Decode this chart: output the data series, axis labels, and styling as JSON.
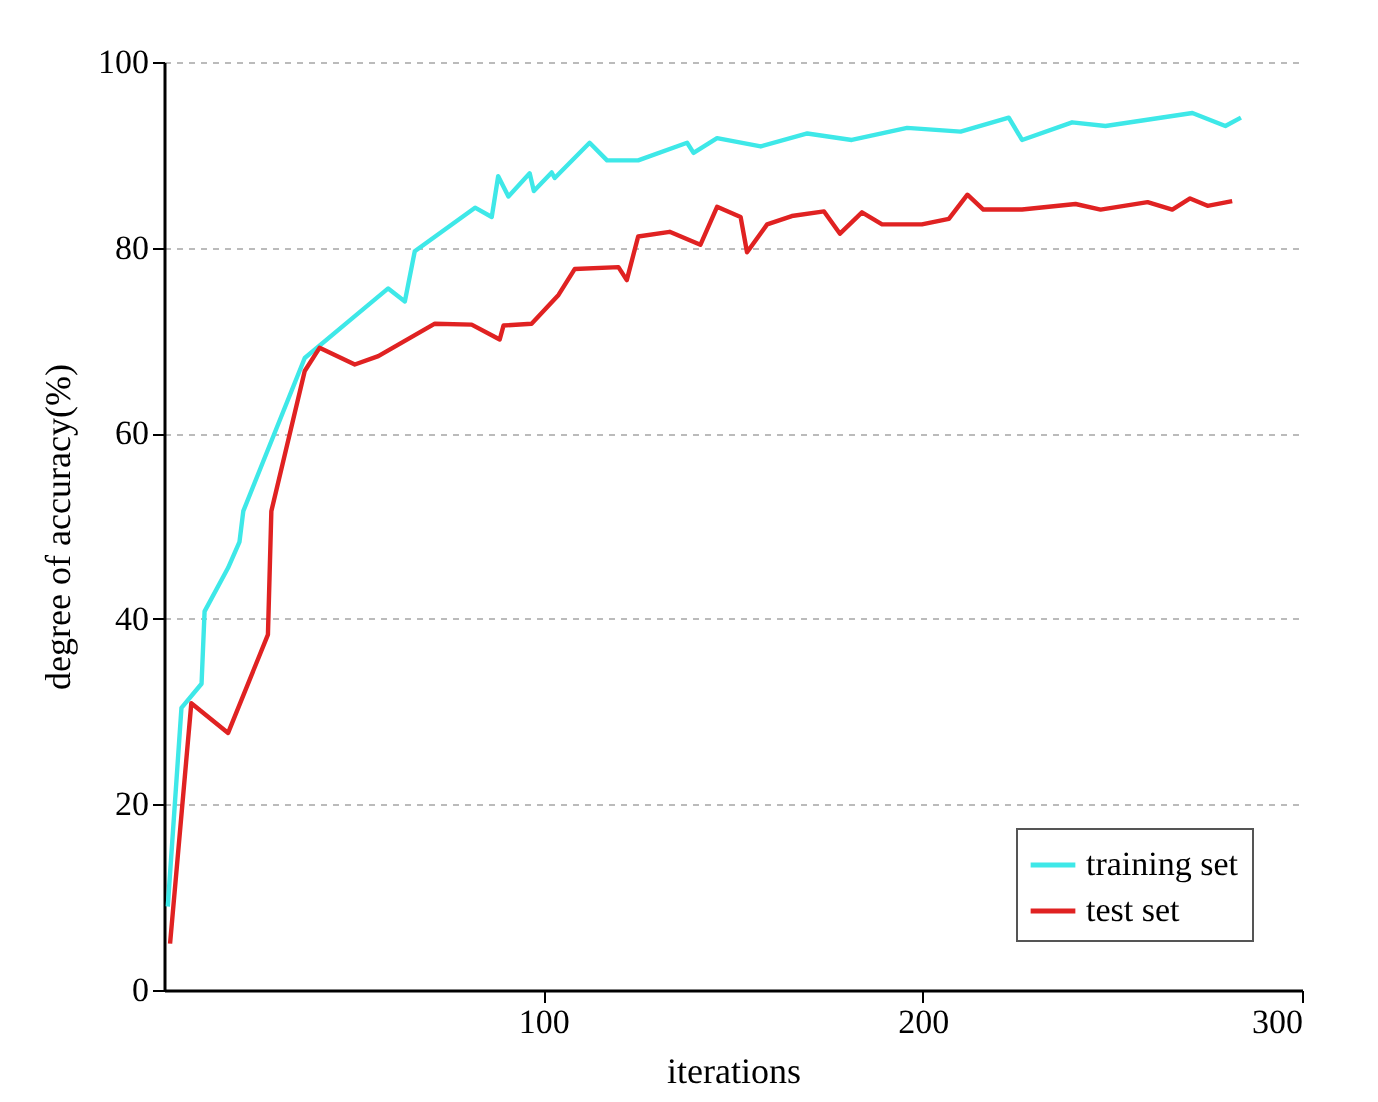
{
  "chart_data": {
    "type": "line",
    "xlabel": "iterations",
    "ylabel": "degree of accuracy(%)",
    "xlim": [
      0,
      300
    ],
    "xticks": [
      100,
      200,
      300
    ],
    "ylim": [
      0,
      100
    ],
    "yticks": [
      0,
      20,
      40,
      60,
      80,
      100
    ],
    "grid": "y",
    "legend": "bottom right",
    "line_style": "solid",
    "marker": "none",
    "series": [
      {
        "name": "training set",
        "color": "#3ee8e8",
        "x": [
          1,
          4.6,
          9.9,
          10.7,
          16.9,
          19.9,
          20.9,
          37.1,
          48.5,
          59.1,
          63.5,
          66.1,
          82,
          86.4,
          88.1,
          90.8,
          96.4,
          97.5,
          102.2,
          103,
          112.2,
          116.8,
          125,
          137.9,
          139.6,
          145.8,
          157.3,
          169.6,
          181.3,
          195.9,
          210,
          222.7,
          226.2,
          239.4,
          248.2,
          271.1,
          279.8,
          283.9
        ],
        "values": [
          9,
          30.4,
          33,
          40.8,
          45.5,
          48.3,
          51.6,
          68.1,
          72,
          75.6,
          74.2,
          79.6,
          84.3,
          83.3,
          87.7,
          85.5,
          88,
          86.1,
          88.1,
          87.5,
          91.3,
          89.4,
          89.4,
          91.3,
          90.2,
          91.8,
          90.9,
          92.3,
          91.6,
          92.9,
          92.5,
          94,
          91.6,
          93.5,
          93.1,
          94.5,
          93.1,
          94
        ]
      },
      {
        "name": "test set",
        "color": "#e02222",
        "x": [
          1.6,
          7.2,
          16.9,
          27.4,
          28.3,
          37.1,
          41,
          50.3,
          56.5,
          71.4,
          81.1,
          88.5,
          89.5,
          96.9,
          104,
          108.3,
          119.8,
          122,
          125,
          133.3,
          141.4,
          145.8,
          152,
          153.7,
          159,
          165.5,
          174,
          178.2,
          184,
          189.3,
          199.8,
          206.9,
          211.8,
          216,
          226.2,
          240.3,
          246.9,
          259.3,
          265.8,
          270.5,
          275.1,
          281.6
        ],
        "values": [
          5,
          30.9,
          27.7,
          38.3,
          51.6,
          66.7,
          69.2,
          67.4,
          68.3,
          71.8,
          71.7,
          70.1,
          71.6,
          71.8,
          74.9,
          77.7,
          77.9,
          76.5,
          81.2,
          81.7,
          80.3,
          84.4,
          83.3,
          79.5,
          82.5,
          83.4,
          83.9,
          81.5,
          83.8,
          82.5,
          82.5,
          83.1,
          85.7,
          84.1,
          84.1,
          84.7,
          84.1,
          84.9,
          84.1,
          85.3,
          84.5,
          85
        ]
      }
    ]
  }
}
